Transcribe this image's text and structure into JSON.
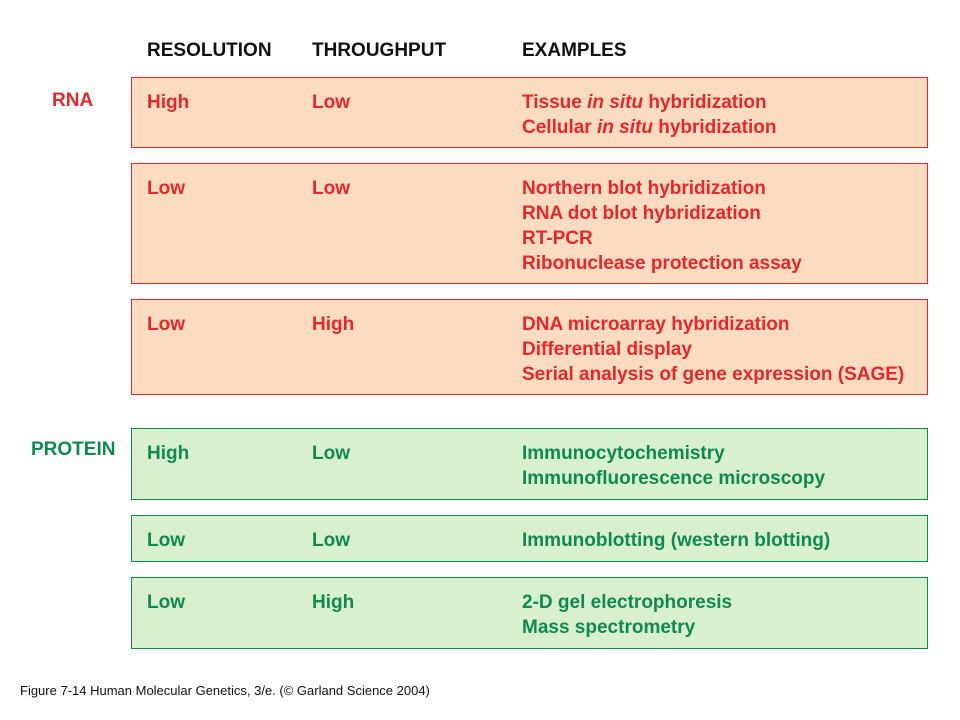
{
  "headers": {
    "resolution": "RESOLUTION",
    "throughput": "THROUGHPUT",
    "examples": "EXAMPLES"
  },
  "categories": {
    "rna": "RNA",
    "protein": "PROTEIN"
  },
  "colors": {
    "rna_text": "#e8272a",
    "rna_fill": "#fcdcc1",
    "protein_text": "#0f8a4f",
    "protein_fill": "#d9f0cf"
  },
  "rows": [
    {
      "group": "rna",
      "resolution": "High",
      "throughput": "Low",
      "examples": [
        [
          "Tissue ",
          "in situ",
          " hybridization"
        ],
        [
          "Cellular ",
          "in situ",
          " hybridization"
        ]
      ]
    },
    {
      "group": "rna",
      "resolution": "Low",
      "throughput": "Low",
      "examples": [
        [
          "Northern blot hybridization"
        ],
        [
          "RNA dot blot hybridization"
        ],
        [
          "RT-PCR"
        ],
        [
          "Ribonuclease protection assay"
        ]
      ]
    },
    {
      "group": "rna",
      "resolution": "Low",
      "throughput": "High",
      "examples": [
        [
          "DNA microarray hybridization"
        ],
        [
          "Differential display"
        ],
        [
          "Serial analysis of gene expression (SAGE)"
        ]
      ]
    },
    {
      "group": "protein",
      "resolution": "High",
      "throughput": "Low",
      "examples": [
        [
          "Immunocytochemistry"
        ],
        [
          "Immunofluorescence microscopy"
        ]
      ]
    },
    {
      "group": "protein",
      "resolution": "Low",
      "throughput": "Low",
      "examples": [
        [
          "Immunoblotting (western blotting)"
        ]
      ]
    },
    {
      "group": "protein",
      "resolution": "Low",
      "throughput": "High",
      "examples": [
        [
          "2-D gel electrophoresis"
        ],
        [
          "Mass spectrometry"
        ]
      ]
    }
  ],
  "caption": "Figure 7-14  Human Molecular Genetics, 3/e.  (© Garland Science 2004)"
}
